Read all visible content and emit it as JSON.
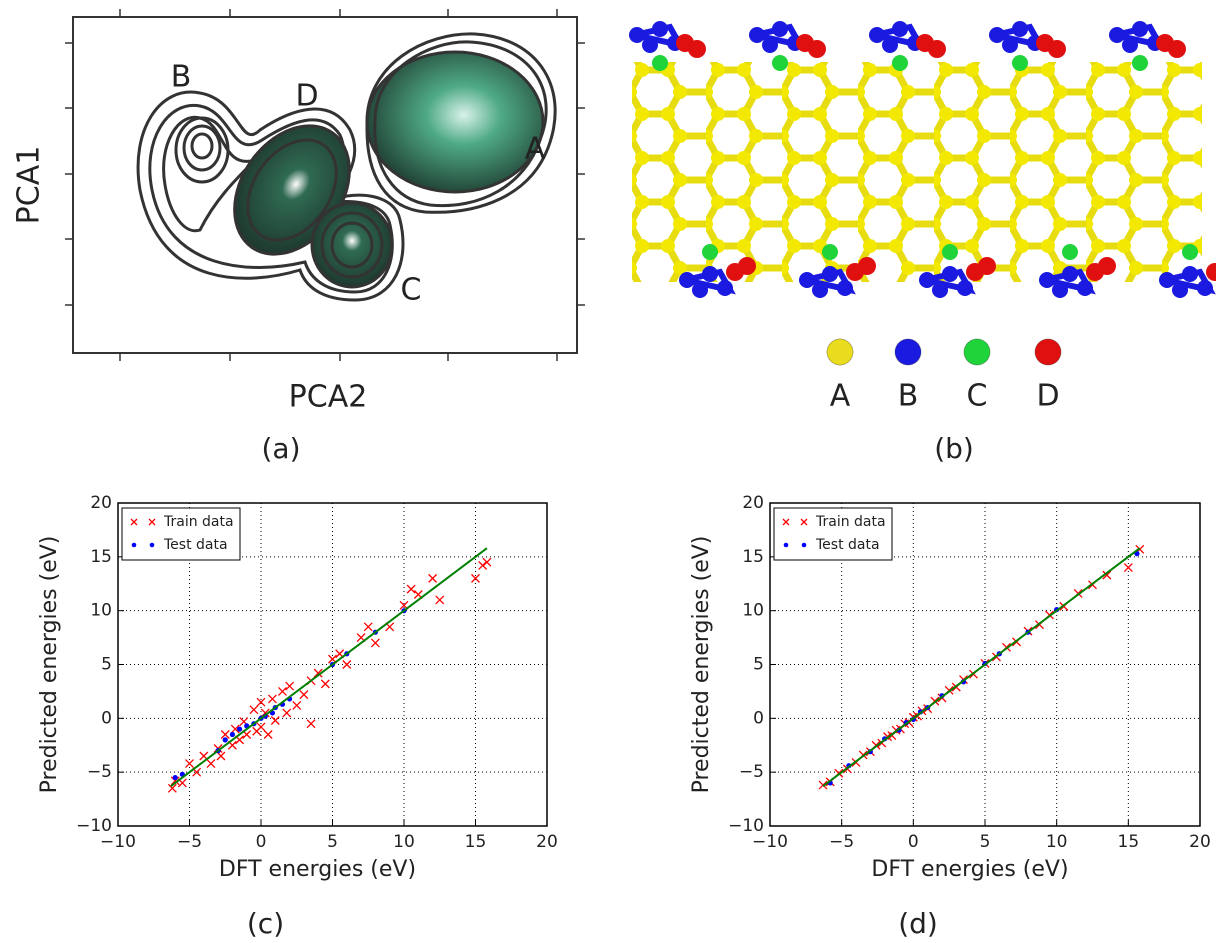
{
  "pca_panel": {
    "caption": "(a)",
    "x_label": "PCA2",
    "y_label": "PCA1",
    "cluster_labels": [
      "A",
      "B",
      "C",
      "D"
    ]
  },
  "structure_panel": {
    "caption": "(b)",
    "legend": [
      {
        "label": "A",
        "color": "#e8dc1c"
      },
      {
        "label": "B",
        "color": "#1a1ae0"
      },
      {
        "label": "C",
        "color": "#1ed43a"
      },
      {
        "label": "D",
        "color": "#e01010"
      }
    ]
  },
  "chart_data": [
    {
      "type": "scatter",
      "caption": "(c)",
      "x_label": "DFT energies (eV)",
      "y_label": "Predicted energies (eV)",
      "xlim": [
        -10,
        20
      ],
      "ylim": [
        -10,
        20
      ],
      "grid": true,
      "legend": "upper left",
      "xticks": [
        {
          "value": -10,
          "label": "−10"
        },
        {
          "value": -5,
          "label": "−5"
        },
        0,
        5,
        10,
        15,
        20
      ],
      "yticks": [
        {
          "value": -10,
          "label": "−10"
        },
        {
          "value": -5,
          "label": "−5"
        },
        0,
        5,
        10,
        15,
        20
      ],
      "series": [
        {
          "name": "Train data",
          "color": "#ff0000",
          "marker": "x",
          "x": [
            -6.2,
            -6,
            -5.5,
            -5,
            -4.5,
            -4,
            -3.5,
            -3,
            -2.8,
            -2.5,
            -2,
            -1.8,
            -1.5,
            -1.2,
            -1,
            -0.5,
            -0.3,
            0,
            0,
            0.3,
            0.5,
            0.8,
            1,
            1.5,
            1.8,
            2,
            2.5,
            3,
            3.5,
            4,
            4.5,
            5,
            5.5,
            6,
            7,
            7.5,
            8,
            9,
            10,
            10.5,
            11,
            12,
            12.5,
            15,
            15.5,
            15.8,
            3.5
          ],
          "values": [
            -6.5,
            -5.8,
            -6,
            -4.2,
            -5,
            -3.5,
            -4.2,
            -2.8,
            -3.5,
            -1.5,
            -2.5,
            -1,
            -2,
            -0.3,
            -1.5,
            0.8,
            -1.2,
            1.5,
            -0.8,
            0.5,
            -1.5,
            1.8,
            -0.2,
            2.5,
            0.5,
            3,
            1.2,
            2.2,
            3.5,
            4.2,
            3.2,
            5.5,
            6,
            5,
            7.5,
            8.5,
            7,
            8.5,
            10.5,
            12,
            11.5,
            13,
            11,
            13,
            14.2,
            14.5,
            -0.5
          ]
        },
        {
          "name": "Test data",
          "color": "#0000ff",
          "marker": "dot",
          "x": [
            -6,
            -5.5,
            -3,
            -2.5,
            -2,
            -1.5,
            -1,
            -0.5,
            0,
            0.3,
            0.8,
            1,
            1.5,
            2,
            5,
            6,
            8,
            10
          ],
          "values": [
            -5.5,
            -5.2,
            -3,
            -2,
            -1.5,
            -1,
            -0.7,
            -0.5,
            0,
            0.2,
            0.5,
            1,
            1.3,
            1.8,
            5,
            6,
            8,
            10
          ]
        }
      ],
      "fit_line": {
        "color": "#008000",
        "x": [
          -6.3,
          15.8
        ],
        "values": [
          -6.3,
          15.8
        ]
      }
    },
    {
      "type": "scatter",
      "caption": "(d)",
      "x_label": "DFT energies (eV)",
      "y_label": "Predicted energies (eV)",
      "xlim": [
        -10,
        20
      ],
      "ylim": [
        -10,
        20
      ],
      "grid": true,
      "legend": "upper left",
      "xticks": [
        {
          "value": -10,
          "label": "−10"
        },
        {
          "value": -5,
          "label": "−5"
        },
        0,
        5,
        10,
        15,
        20
      ],
      "yticks": [
        {
          "value": -10,
          "label": "−10"
        },
        {
          "value": -5,
          "label": "−5"
        },
        0,
        5,
        10,
        15,
        20
      ],
      "series": [
        {
          "name": "Train data",
          "color": "#ff0000",
          "marker": "x",
          "x": [
            -6.3,
            -5.8,
            -5.2,
            -4.6,
            -4,
            -3.5,
            -3,
            -2.6,
            -2.2,
            -1.8,
            -1.5,
            -1.2,
            -0.9,
            -0.6,
            -0.3,
            0,
            0.3,
            0.6,
            1,
            1.5,
            2,
            2.5,
            3,
            3.5,
            4.2,
            5,
            5.8,
            6.5,
            7.2,
            8,
            8.8,
            9.5,
            10.5,
            11.5,
            12.5,
            13.5,
            15,
            15.8
          ],
          "values": [
            -6.2,
            -5.9,
            -5.1,
            -4.7,
            -4.1,
            -3.4,
            -3.1,
            -2.5,
            -2.3,
            -1.7,
            -1.6,
            -1.1,
            -1,
            -0.5,
            -0.4,
            0.1,
            0.2,
            0.7,
            0.9,
            1.6,
            1.9,
            2.6,
            2.9,
            3.6,
            4.1,
            5.1,
            5.7,
            6.6,
            7.1,
            8.1,
            8.7,
            9.6,
            10.4,
            11.6,
            12.4,
            13.3,
            14,
            15.7
          ]
        },
        {
          "name": "Test data",
          "color": "#0000ff",
          "marker": "dot",
          "x": [
            -5.8,
            -4.5,
            -3,
            -2,
            -1,
            -0.5,
            0,
            0.5,
            1,
            2,
            3.5,
            5,
            6,
            8,
            10,
            15.6
          ],
          "values": [
            -6,
            -4.4,
            -3.1,
            -1.9,
            -1.1,
            -0.4,
            -0.1,
            0.6,
            1,
            2.1,
            3.4,
            5.1,
            6,
            8,
            10.1,
            15.3
          ]
        }
      ],
      "fit_line": {
        "color": "#008000",
        "x": [
          -6.3,
          15.8
        ],
        "values": [
          -6.3,
          15.8
        ]
      }
    }
  ]
}
